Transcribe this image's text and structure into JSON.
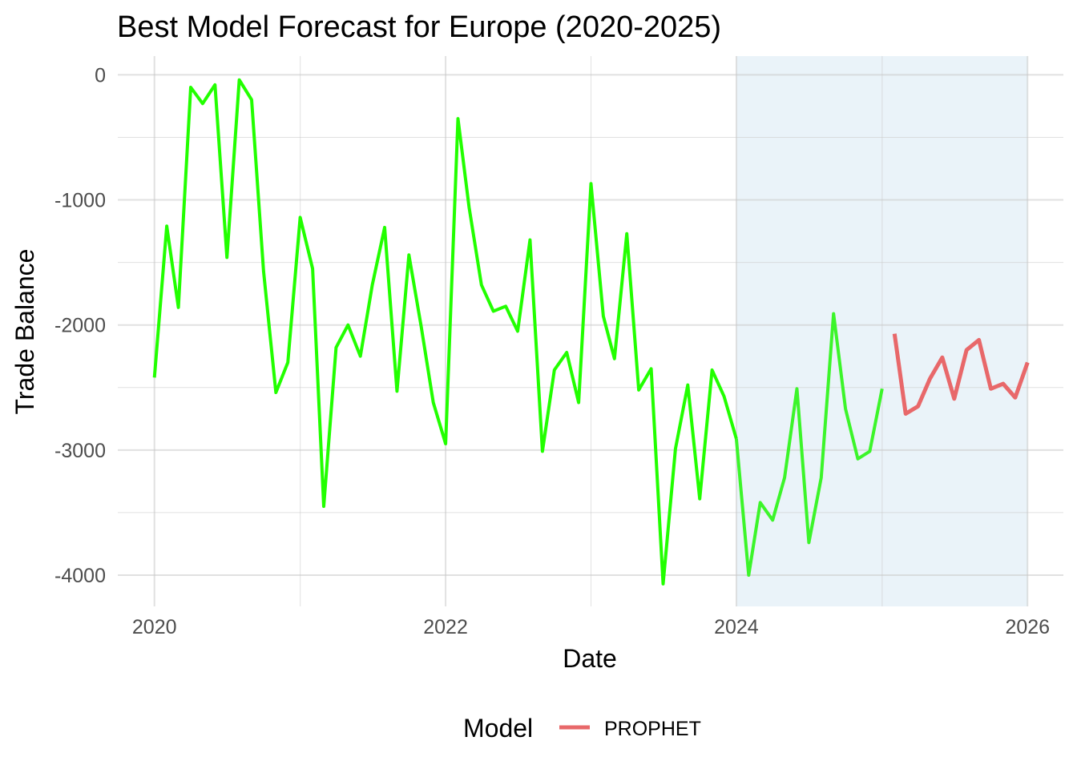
{
  "chart_data": {
    "type": "line",
    "title": "Best Model Forecast for Europe (2020-2025)",
    "xlabel": "Date",
    "ylabel": "Trade Balance",
    "xlim": [
      "2019-10-01",
      "2026-04-01"
    ],
    "ylim": [
      -4250,
      150
    ],
    "x_ticks": [
      "2020",
      "2022",
      "2024",
      "2026"
    ],
    "y_ticks": [
      "0",
      "-1000",
      "-2000",
      "-3000",
      "-4000"
    ],
    "grid": true,
    "legend": {
      "title": "Model",
      "position": "bottom",
      "entries": [
        {
          "label": "PROPHET",
          "color": "#e8686a"
        }
      ]
    },
    "shaded_region": {
      "from": "2024-01-01",
      "to": "2026-01-01",
      "color": "#eaf3f9"
    },
    "series": [
      {
        "role": "historical",
        "color": "#22ff00",
        "x": [
          "2020-01-01",
          "2020-02-01",
          "2020-03-01",
          "2020-04-01",
          "2020-05-01",
          "2020-06-01",
          "2020-07-01",
          "2020-08-01",
          "2020-09-01",
          "2020-10-01",
          "2020-11-01",
          "2020-12-01",
          "2021-01-01",
          "2021-02-01",
          "2021-03-01",
          "2021-04-01",
          "2021-05-01",
          "2021-06-01",
          "2021-07-01",
          "2021-08-01",
          "2021-09-01",
          "2021-10-01",
          "2021-11-01",
          "2021-12-01",
          "2022-01-01",
          "2022-02-01",
          "2022-03-01",
          "2022-04-01",
          "2022-05-01",
          "2022-06-01",
          "2022-07-01",
          "2022-08-01",
          "2022-09-01",
          "2022-10-01",
          "2022-11-01",
          "2022-12-01",
          "2023-01-01",
          "2023-02-01",
          "2023-03-01",
          "2023-04-01",
          "2023-05-01",
          "2023-06-01",
          "2023-07-01",
          "2023-08-01",
          "2023-09-01",
          "2023-10-01",
          "2023-11-01",
          "2023-12-01",
          "2024-01-01"
        ],
        "values": [
          -2420,
          -1210,
          -1860,
          -100,
          -230,
          -80,
          -1460,
          -40,
          -200,
          -1570,
          -2540,
          -2300,
          -1140,
          -1550,
          -3450,
          -2180,
          -2000,
          -2250,
          -1680,
          -1220,
          -2530,
          -1440,
          -2020,
          -2620,
          -2950,
          -350,
          -1060,
          -1680,
          -1890,
          -1850,
          -2050,
          -1320,
          -3010,
          -2360,
          -2220,
          -2620,
          -870,
          -1930,
          -2270,
          -1270,
          -2520,
          -2350,
          -4070,
          -2990,
          -2480,
          -3390,
          -2360,
          -2570,
          -2910
        ]
      },
      {
        "role": "actual-in-test-period",
        "color": "#3cf52a",
        "x": [
          "2024-01-01",
          "2024-02-01",
          "2024-03-01",
          "2024-04-01",
          "2024-05-01",
          "2024-06-01",
          "2024-07-01",
          "2024-08-01",
          "2024-09-01",
          "2024-10-01",
          "2024-11-01",
          "2024-12-01",
          "2025-01-01"
        ],
        "values": [
          -2910,
          -4000,
          -3420,
          -3560,
          -3220,
          -2510,
          -3740,
          -3220,
          -1910,
          -2670,
          -3070,
          -3010,
          -2510
        ]
      },
      {
        "name": "PROPHET",
        "color": "#e8686a",
        "x": [
          "2025-02-01",
          "2025-03-01",
          "2025-04-01",
          "2025-05-01",
          "2025-06-01",
          "2025-07-01",
          "2025-08-01",
          "2025-09-01",
          "2025-10-01",
          "2025-11-01",
          "2025-12-01",
          "2026-01-01"
        ],
        "values": [
          -2070,
          -2710,
          -2650,
          -2430,
          -2260,
          -2590,
          -2200,
          -2120,
          -2510,
          -2470,
          -2580,
          -2300
        ]
      }
    ]
  }
}
